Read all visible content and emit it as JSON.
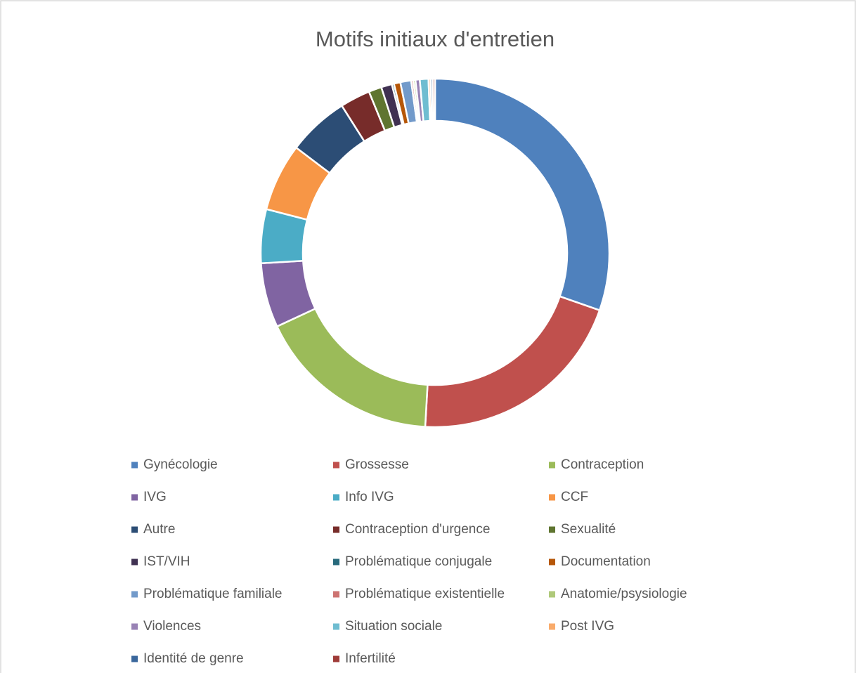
{
  "chart_data": {
    "type": "donut",
    "title": "Motifs initiaux d'entretien",
    "categories": [
      "Gynécologie",
      "Grossesse",
      "Contraception",
      "IVG",
      "Info IVG",
      "CCF",
      "Autre",
      "Contraception d'urgence",
      "Sexualité",
      "IST/VIH",
      "Problématique conjugale",
      "Documentation",
      "Problématique familiale",
      "Problématique existentielle",
      "Anatomie/psysiologie",
      "Violences",
      "Situation sociale",
      "Post IVG",
      "Identité de genre",
      "Infertilité"
    ],
    "values": [
      30.4,
      20.6,
      17.2,
      6,
      5,
      6.3,
      5.7,
      2.8,
      1.2,
      1,
      0.2,
      0.6,
      1,
      0.2,
      0.2,
      0.4,
      0.8,
      0.2,
      0.2,
      0.2
    ],
    "colors": [
      "#4f81bd",
      "#c0504d",
      "#9bbb59",
      "#8064a2",
      "#4bacc6",
      "#f79646",
      "#2c4d75",
      "#772c2a",
      "#5f7530",
      "#403152",
      "#276a7c",
      "#b65708",
      "#729aca",
      "#cd7371",
      "#afc97a",
      "#9983b5",
      "#6fbdd1",
      "#f9ab6b",
      "#3a679c",
      "#9f3b38"
    ],
    "legend": "bottom"
  }
}
